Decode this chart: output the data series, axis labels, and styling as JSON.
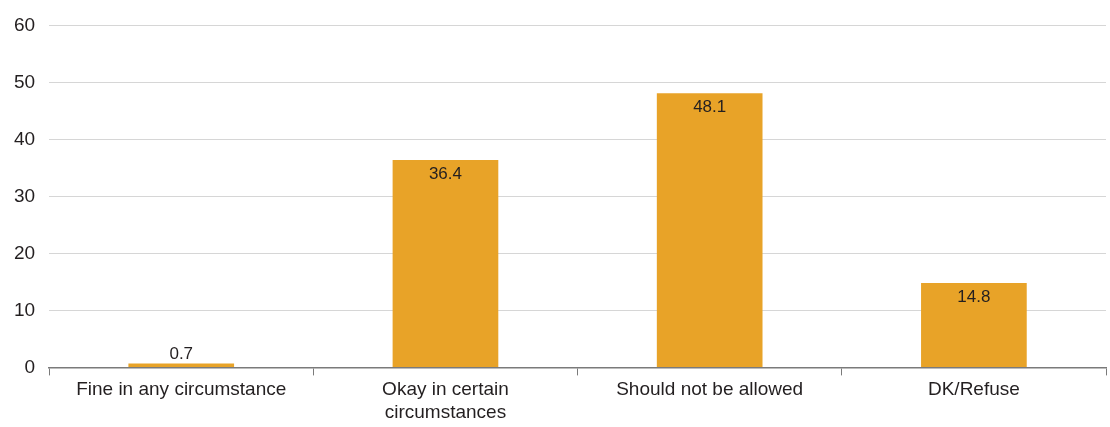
{
  "chart_data": {
    "type": "bar",
    "categories": [
      "Fine in any circumstance",
      "Okay in certain circumstances",
      "Should not be allowed",
      "DK/Refuse"
    ],
    "values": [
      0.7,
      36.4,
      48.1,
      14.8
    ],
    "color": "#e8a328",
    "ylim": [
      0,
      60
    ],
    "yticks": [
      0,
      10,
      20,
      30,
      40,
      50,
      60
    ],
    "grid": "y",
    "legend": false,
    "data_labels": true
  }
}
